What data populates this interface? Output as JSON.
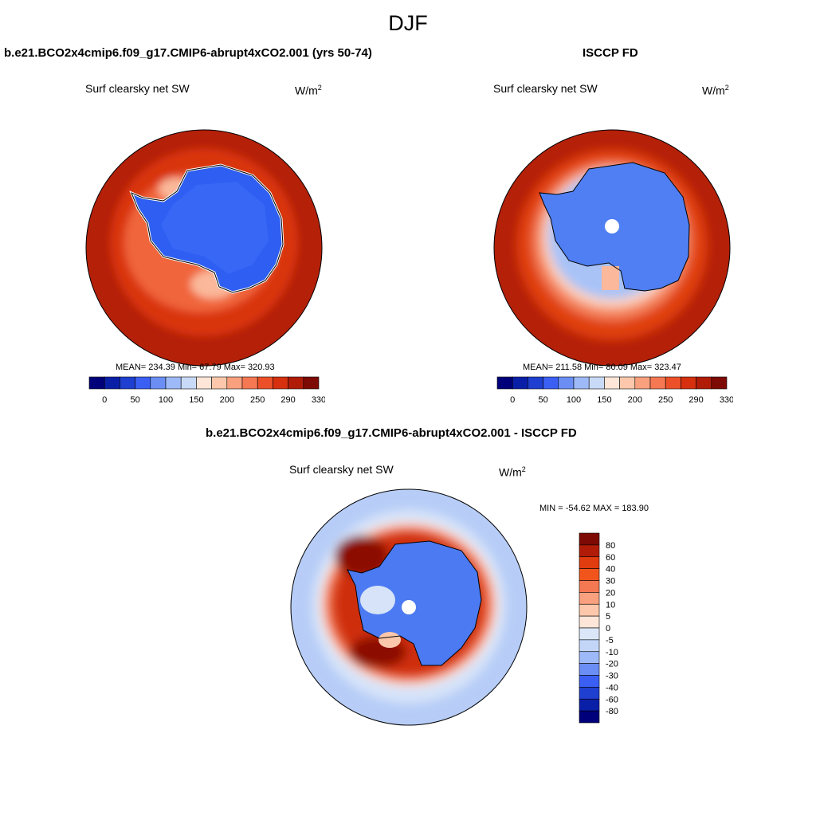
{
  "season": "DJF",
  "panels": {
    "model": {
      "title": "b.e21.BCO2x4cmip6.f09_g17.CMIP6-abrupt4xCO2.001 (yrs 50-74)",
      "subtitle": "Surf clearsky net SW",
      "units_base": "W/m",
      "units_exp": "2",
      "stats": "MEAN= 234.39  Min=  67.79  Max= 320.93"
    },
    "obs": {
      "title": "ISCCP FD",
      "subtitle": "Surf clearsky net SW",
      "units_base": "W/m",
      "units_exp": "2",
      "stats": "MEAN= 211.58  Min=  80.09  Max= 323.47"
    },
    "diff": {
      "title": "b.e21.BCO2x4cmip6.f09_g17.CMIP6-abrupt4xCO2.001 - ISCCP FD",
      "subtitle": "Surf clearsky net SW",
      "units_base": "W/m",
      "units_exp": "2",
      "stats": "MIN = -54.62 MAX = 183.90"
    }
  },
  "colorbar_abs": {
    "colors": [
      "#00007a",
      "#0a1fa8",
      "#1f3fd0",
      "#3a5ff2",
      "#6b8ef5",
      "#9eb9f7",
      "#c8daf8",
      "#fde5d8",
      "#fcc7ab",
      "#f9a07e",
      "#f47852",
      "#ec5028",
      "#d6300f",
      "#b01c08",
      "#7d0a04"
    ],
    "labels": [
      "0",
      "50",
      "100",
      "150",
      "200",
      "250",
      "290",
      "330"
    ]
  },
  "colorbar_diff": {
    "colors": [
      "#7d0a04",
      "#b01c08",
      "#e03c0f",
      "#f2551c",
      "#f47852",
      "#f9a07e",
      "#fcc7ab",
      "#fde5d8",
      "#dbe7f9",
      "#c3d6f8",
      "#9eb9f7",
      "#6b8ef5",
      "#3a5ff2",
      "#1f3fd0",
      "#0a1fa8",
      "#00007a"
    ],
    "labels": [
      "80",
      "60",
      "40",
      "30",
      "20",
      "10",
      "5",
      "0",
      "-5",
      "-10",
      "-20",
      "-30",
      "-40",
      "-60",
      "-80"
    ]
  }
}
